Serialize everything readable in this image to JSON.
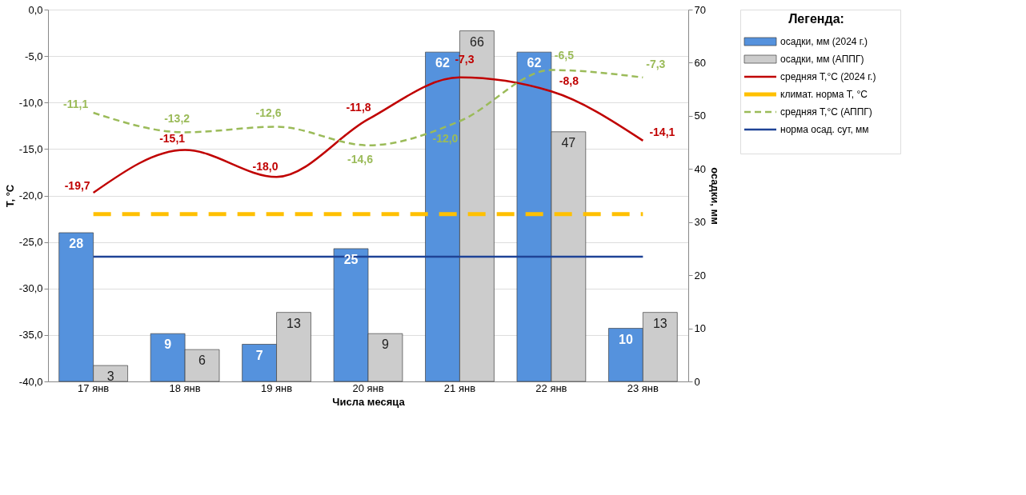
{
  "chart_data": {
    "type": "bar",
    "xlabel": "Числа месяца",
    "ylabel": "Т, °С",
    "y2label": "осадки, мм",
    "legend_title": "Легенда:",
    "legend": "right",
    "grid": "y",
    "categories": [
      "17 янв",
      "18 янв",
      "19 янв",
      "20 янв",
      "21 янв",
      "22 янв",
      "23 янв"
    ],
    "ylim": [
      -40,
      0
    ],
    "yticks": [
      {
        "value": -40,
        "label": "-40,0"
      },
      {
        "value": -35,
        "label": "-35,0"
      },
      {
        "value": -30,
        "label": "-30,0"
      },
      {
        "value": -25,
        "label": "-25,0"
      },
      {
        "value": -20,
        "label": "-20,0"
      },
      {
        "value": -15,
        "label": "-15,0"
      },
      {
        "value": -10,
        "label": "-10,0"
      },
      {
        "value": -5,
        "label": "-5,0"
      },
      {
        "value": 0,
        "label": "0,0"
      }
    ],
    "y2lim": [
      0,
      70
    ],
    "y2ticks": [
      0,
      10,
      20,
      30,
      40,
      50,
      60,
      70
    ],
    "series": [
      {
        "name": "осадки, мм (2024 г.)",
        "axis": "y2",
        "color": "#5592dd",
        "values": [
          28,
          9,
          7,
          25,
          62,
          62,
          10
        ],
        "value_labels": [
          "28",
          "9",
          "7",
          "25",
          "62",
          "62",
          "10"
        ]
      },
      {
        "name": "осадки, мм (АППГ)",
        "axis": "y2",
        "color": "#cccccc",
        "values": [
          3,
          6,
          13,
          9,
          66,
          47,
          13
        ],
        "value_labels": [
          "3",
          "6",
          "13",
          "9",
          "66",
          "47",
          "13"
        ]
      },
      {
        "name": "средняя Т,°С (2024 г.)",
        "type": "line",
        "axis": "y",
        "color": "#c00000",
        "line_style": "solid",
        "values": [
          -19.7,
          -15.1,
          -18.0,
          -11.8,
          -7.3,
          -8.8,
          -14.1
        ],
        "value_labels": [
          "-19,7",
          "-15,1",
          "-18,0",
          "-11,8",
          "-7,3",
          "-8,8",
          "-14,1"
        ]
      },
      {
        "name": "климат. норма Т, °С",
        "type": "line",
        "axis": "y",
        "color": "#ffc000",
        "line_style": "dashed",
        "values": [
          -22,
          -22,
          -22,
          -22,
          -22,
          -22,
          -22
        ]
      },
      {
        "name": "средняя Т,°С (АППГ)",
        "type": "line",
        "axis": "y",
        "color": "#9bbb59",
        "line_style": "dashed",
        "values": [
          -11.1,
          -13.2,
          -12.6,
          -14.6,
          -12.0,
          -6.5,
          -7.3
        ],
        "value_labels": [
          "-11,1",
          "-13,2",
          "-12,6",
          "-14,6",
          "-12,0",
          "-6,5",
          "-7,3"
        ]
      },
      {
        "name": "норма осад. сут, мм",
        "type": "line",
        "axis": "y2",
        "color": "#1f4396",
        "line_style": "solid",
        "values": [
          23.5,
          23.5,
          23.5,
          23.5,
          23.5,
          23.5,
          23.5
        ]
      }
    ]
  }
}
